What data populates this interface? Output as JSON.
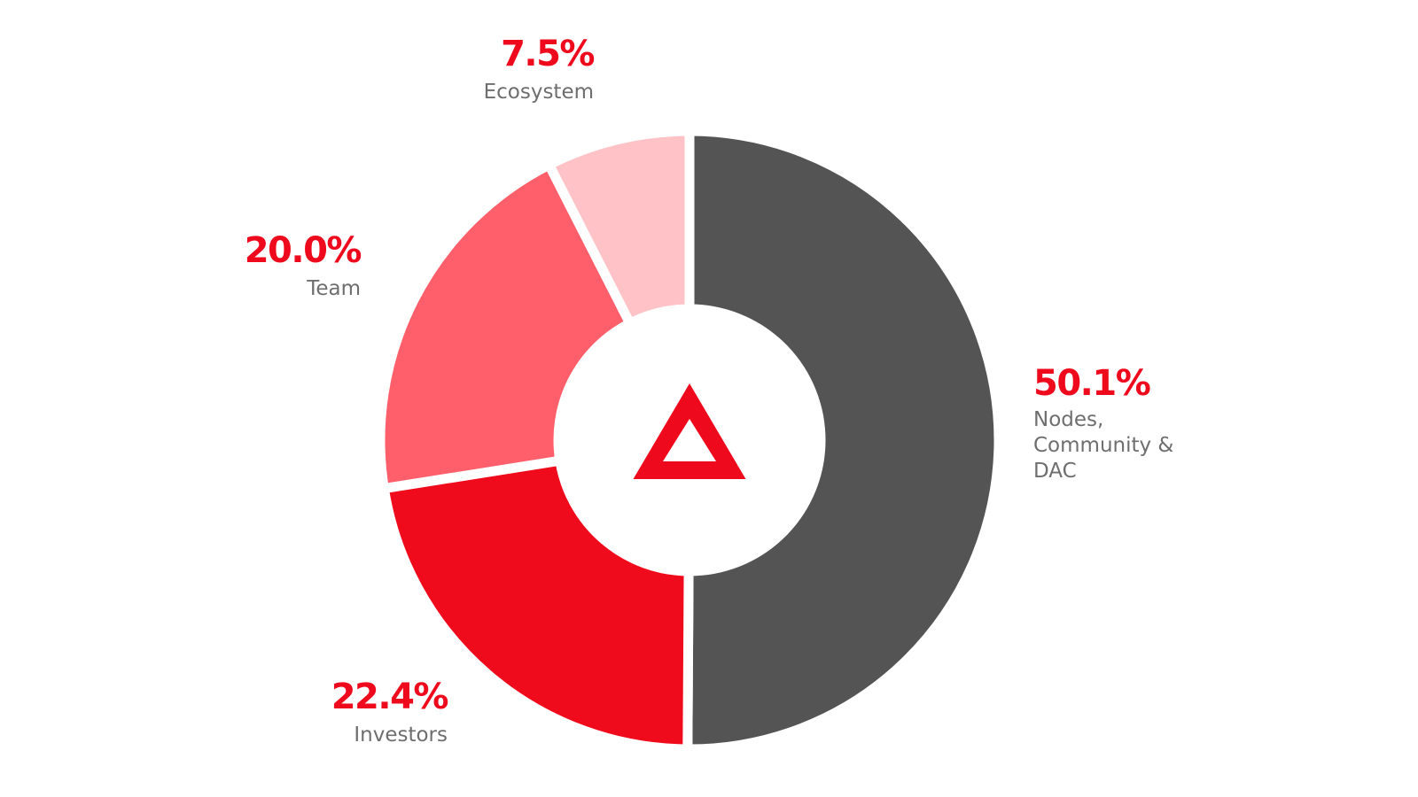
{
  "chart_data": {
    "type": "pie",
    "variant": "donut",
    "title": "",
    "slices": [
      {
        "label": "Nodes,\nCommunity &\nDAC",
        "value_label": "50.1%",
        "value": 50.1,
        "color": "#545454"
      },
      {
        "label": "Investors",
        "value_label": "22.4%",
        "value": 22.4,
        "color": "#f00b1c"
      },
      {
        "label": "Team",
        "value_label": "20.0%",
        "value": 20.0,
        "color": "#ff5f6b"
      },
      {
        "label": "Ecosystem",
        "value_label": "7.5%",
        "value": 7.5,
        "color": "#ffc3c7"
      }
    ],
    "start_angle": "12 o'clock",
    "direction": "clockwise",
    "center_icon": "triangle-logo-icon",
    "center_icon_color": "#ee0a1c",
    "label_color": "#ee0a1c",
    "sublabel_color": "#6e6e6e"
  }
}
